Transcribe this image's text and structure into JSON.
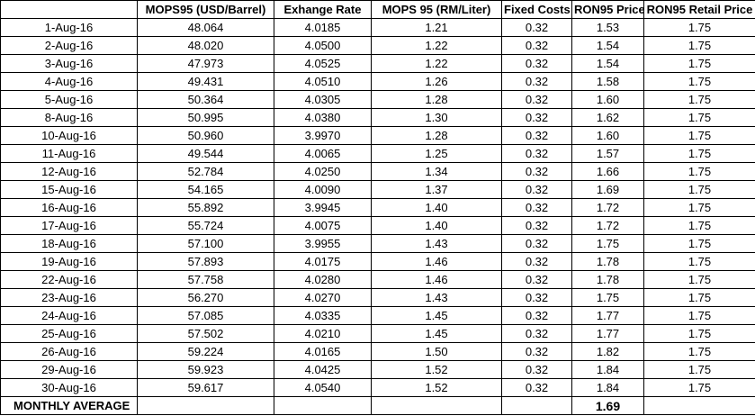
{
  "headers": [
    "",
    "MOPS95 (USD/Barrel)",
    "Exhange Rate",
    "MOPS 95 (RM/Liter)",
    "Fixed Costs",
    "RON95 Price",
    "RON95 Retail Price"
  ],
  "rows": [
    [
      "1-Aug-16",
      "48.064",
      "4.0185",
      "1.21",
      "0.32",
      "1.53",
      "1.75"
    ],
    [
      "2-Aug-16",
      "48.020",
      "4.0500",
      "1.22",
      "0.32",
      "1.54",
      "1.75"
    ],
    [
      "3-Aug-16",
      "47.973",
      "4.0525",
      "1.22",
      "0.32",
      "1.54",
      "1.75"
    ],
    [
      "4-Aug-16",
      "49.431",
      "4.0510",
      "1.26",
      "0.32",
      "1.58",
      "1.75"
    ],
    [
      "5-Aug-16",
      "50.364",
      "4.0305",
      "1.28",
      "0.32",
      "1.60",
      "1.75"
    ],
    [
      "8-Aug-16",
      "50.995",
      "4.0380",
      "1.30",
      "0.32",
      "1.62",
      "1.75"
    ],
    [
      "10-Aug-16",
      "50.960",
      "3.9970",
      "1.28",
      "0.32",
      "1.60",
      "1.75"
    ],
    [
      "11-Aug-16",
      "49.544",
      "4.0065",
      "1.25",
      "0.32",
      "1.57",
      "1.75"
    ],
    [
      "12-Aug-16",
      "52.784",
      "4.0250",
      "1.34",
      "0.32",
      "1.66",
      "1.75"
    ],
    [
      "15-Aug-16",
      "54.165",
      "4.0090",
      "1.37",
      "0.32",
      "1.69",
      "1.75"
    ],
    [
      "16-Aug-16",
      "55.892",
      "3.9945",
      "1.40",
      "0.32",
      "1.72",
      "1.75"
    ],
    [
      "17-Aug-16",
      "55.724",
      "4.0075",
      "1.40",
      "0.32",
      "1.72",
      "1.75"
    ],
    [
      "18-Aug-16",
      "57.100",
      "3.9955",
      "1.43",
      "0.32",
      "1.75",
      "1.75"
    ],
    [
      "19-Aug-16",
      "57.893",
      "4.0175",
      "1.46",
      "0.32",
      "1.78",
      "1.75"
    ],
    [
      "22-Aug-16",
      "57.758",
      "4.0280",
      "1.46",
      "0.32",
      "1.78",
      "1.75"
    ],
    [
      "23-Aug-16",
      "56.270",
      "4.0270",
      "1.43",
      "0.32",
      "1.75",
      "1.75"
    ],
    [
      "24-Aug-16",
      "57.085",
      "4.0335",
      "1.45",
      "0.32",
      "1.77",
      "1.75"
    ],
    [
      "25-Aug-16",
      "57.502",
      "4.0210",
      "1.45",
      "0.32",
      "1.77",
      "1.75"
    ],
    [
      "26-Aug-16",
      "59.224",
      "4.0165",
      "1.50",
      "0.32",
      "1.82",
      "1.75"
    ],
    [
      "29-Aug-16",
      "59.923",
      "4.0425",
      "1.52",
      "0.32",
      "1.84",
      "1.75"
    ],
    [
      "30-Aug-16",
      "59.617",
      "4.0540",
      "1.52",
      "0.32",
      "1.84",
      "1.75"
    ]
  ],
  "footer": {
    "label": "MONTHLY AVERAGE",
    "average": "1.69"
  }
}
